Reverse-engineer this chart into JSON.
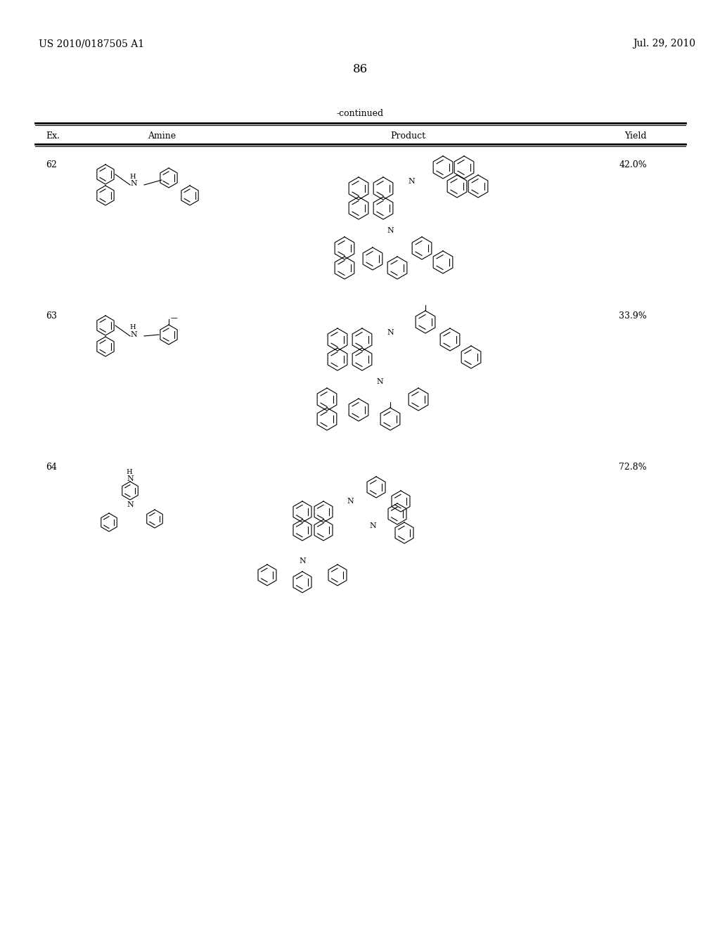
{
  "page_number": "86",
  "patent_number": "US 2010/0187505 A1",
  "patent_date": "Jul. 29, 2010",
  "table_title": "-continued",
  "col_headers": [
    "Ex.",
    "Amine",
    "Product",
    "Yield"
  ],
  "rows": [
    {
      "ex": "62",
      "yield": "42.0%"
    },
    {
      "ex": "63",
      "yield": "33.9%"
    },
    {
      "ex": "64",
      "yield": "72.8%"
    }
  ],
  "bg_color": "#ffffff",
  "text_color": "#000000",
  "line_color": "#000000",
  "font_size_header": 9,
  "font_size_body": 9,
  "font_size_page": 10,
  "font_size_page_num": 12
}
